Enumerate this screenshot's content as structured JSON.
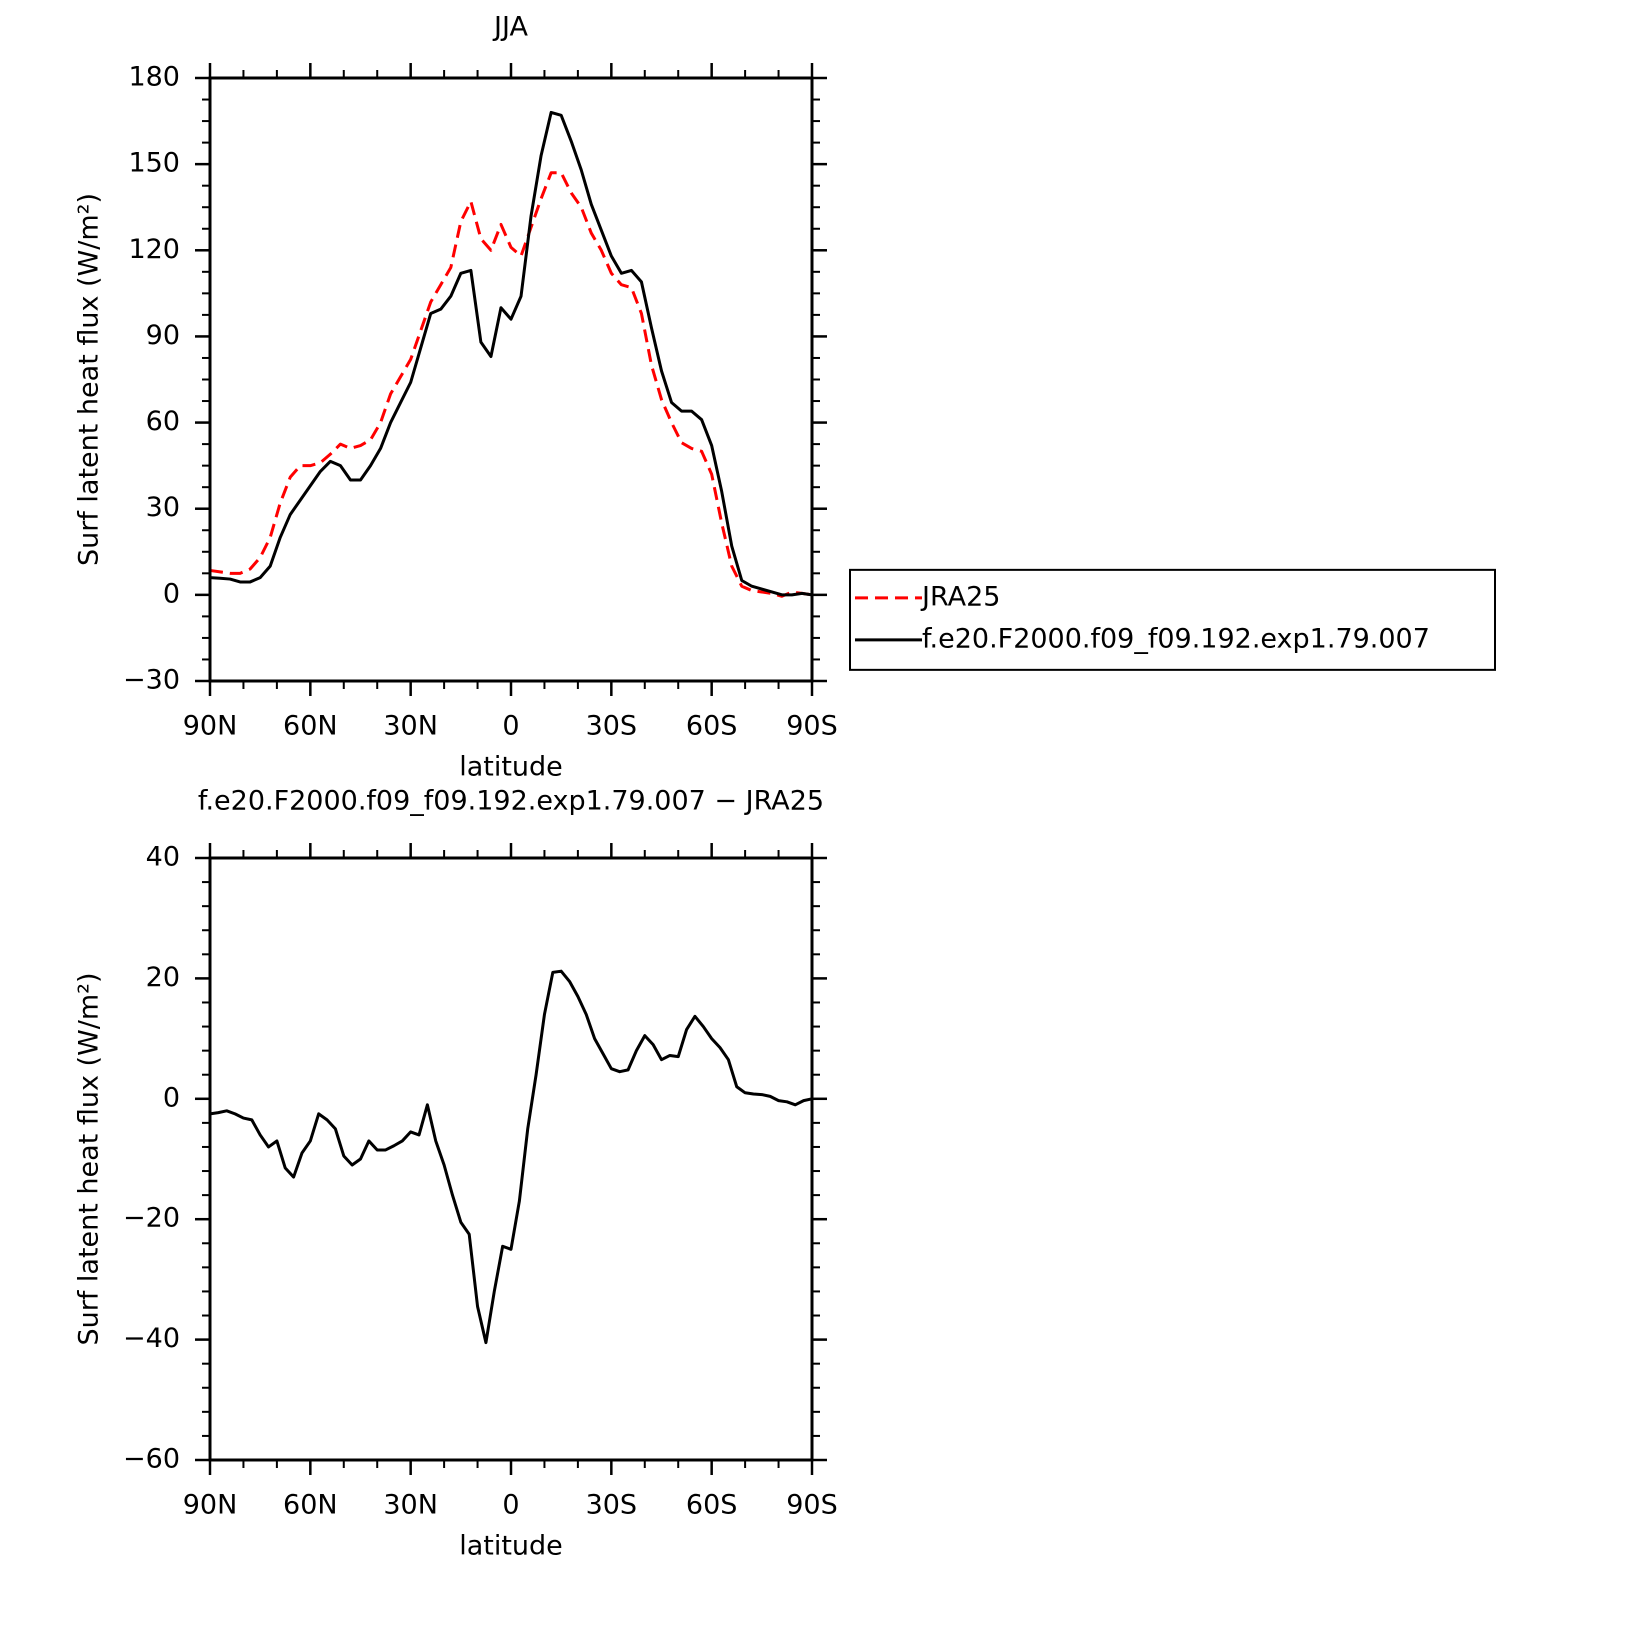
{
  "chart_data": [
    {
      "type": "line",
      "title": "JJA",
      "xlabel": "latitude",
      "ylabel": "Surf latent heat flux (W/m²)",
      "x": [
        90,
        87,
        84,
        81,
        78,
        75,
        72,
        69,
        66,
        63,
        60,
        57,
        54,
        51,
        48,
        45,
        42,
        39,
        36,
        33,
        30,
        27,
        24,
        21,
        18,
        15,
        12,
        9,
        6,
        3,
        0,
        -3,
        -6,
        -9,
        -12,
        -15,
        -18,
        -21,
        -24,
        -27,
        -30,
        -33,
        -36,
        -39,
        -42,
        -45,
        -48,
        -51,
        -54,
        -57,
        -60,
        -63,
        -66,
        -69,
        -72,
        -75,
        -78,
        -81,
        -84,
        -87,
        -90
      ],
      "xlim": [
        90,
        -90
      ],
      "xticks": [
        {
          "value": 90,
          "label": "90N"
        },
        {
          "value": 60,
          "label": "60N"
        },
        {
          "value": 30,
          "label": "30N"
        },
        0,
        {
          "value": -30,
          "label": "30S"
        },
        {
          "value": -60,
          "label": "60S"
        },
        {
          "value": -90,
          "label": "90S"
        }
      ],
      "ylim": [
        -30,
        180
      ],
      "yticks": [
        -30,
        0,
        30,
        60,
        90,
        120,
        150,
        180
      ],
      "legend": "right",
      "series": [
        {
          "name": "JRA25",
          "color": "#ff0000",
          "dash": true,
          "values": [
            8.5,
            8,
            7.5,
            7.5,
            9,
            13,
            20,
            32,
            41,
            45,
            45,
            46,
            49,
            52.5,
            51,
            52,
            54,
            60,
            70,
            76,
            82,
            92,
            102,
            108,
            114,
            130,
            137,
            124,
            120,
            129,
            121,
            118,
            128,
            138,
            147,
            147,
            140,
            135,
            126,
            120,
            112,
            108,
            107,
            98,
            80,
            68,
            60,
            53,
            51,
            50,
            42,
            25,
            10,
            3,
            1.5,
            1,
            0.5,
            -0.5,
            1,
            0.5,
            0
          ]
        },
        {
          "name": "f.e20.F2000.f09_f09.192.exp1.79.007",
          "color": "#000000",
          "values": [
            6,
            5.8,
            5.5,
            4.5,
            4.5,
            6,
            10,
            20,
            28,
            33,
            38,
            43,
            46.5,
            45,
            40,
            40,
            45,
            51,
            60,
            67,
            74,
            86,
            98,
            99.5,
            104,
            112,
            113,
            88,
            83,
            100,
            96,
            104,
            132,
            153,
            168,
            167,
            158,
            148,
            136,
            127,
            118,
            112,
            113,
            109,
            93,
            78,
            67,
            64,
            64,
            61,
            52,
            36,
            17,
            5,
            3,
            2,
            1,
            0,
            0,
            0.5,
            0
          ]
        }
      ]
    },
    {
      "type": "line",
      "title": "f.e20.F2000.f09_f09.192.exp1.79.007 − JRA25",
      "xlabel": "latitude",
      "ylabel": "Surf latent heat flux (W/m²)",
      "x": [
        90,
        87.5,
        85,
        82.5,
        80,
        77.5,
        75,
        72.5,
        70,
        67.5,
        65,
        62.5,
        60,
        57.5,
        55,
        52.5,
        50,
        47.5,
        45,
        42.5,
        40,
        37.5,
        35,
        32.5,
        30,
        27.5,
        25,
        22.5,
        20,
        17.5,
        15,
        12.5,
        10,
        7.5,
        5,
        2.5,
        0,
        -2.5,
        -5,
        -7.5,
        -10,
        -12.5,
        -15,
        -17.5,
        -20,
        -22.5,
        -25,
        -27.5,
        -30,
        -32.5,
        -35,
        -37.5,
        -40,
        -42.5,
        -45,
        -47.5,
        -50,
        -52.5,
        -55,
        -57.5,
        -60,
        -62.5,
        -65,
        -67.5,
        -70,
        -72.5,
        -75,
        -77.5,
        -80,
        -82.5,
        -85,
        -87.5,
        -90
      ],
      "xlim": [
        90,
        -90
      ],
      "xticks": [
        {
          "value": 90,
          "label": "90N"
        },
        {
          "value": 60,
          "label": "60N"
        },
        {
          "value": 30,
          "label": "30N"
        },
        0,
        {
          "value": -30,
          "label": "30S"
        },
        {
          "value": -60,
          "label": "60S"
        },
        {
          "value": -90,
          "label": "90S"
        }
      ],
      "ylim": [
        -60,
        40
      ],
      "yticks": [
        -60,
        -40,
        -20,
        0,
        20,
        40
      ],
      "series": [
        {
          "color": "#000000",
          "values": [
            -2.5,
            -2.3,
            -2,
            -2.5,
            -3.2,
            -3.5,
            -6,
            -8,
            -7,
            -11.5,
            -13,
            -9,
            -7,
            -2.5,
            -3.5,
            -5,
            -9.5,
            -11,
            -10,
            -7,
            -8.5,
            -8.5,
            -7.8,
            -7,
            -5.5,
            -6,
            -1,
            -7,
            -11,
            -16,
            -20.5,
            -22.5,
            -34.5,
            -40.5,
            -32,
            -24.5,
            -25,
            -17,
            -5,
            4,
            14,
            21,
            21.2,
            19.5,
            17,
            14,
            10,
            7.5,
            5,
            4.5,
            4.8,
            8,
            10.5,
            9,
            6.5,
            7.2,
            7,
            11.5,
            13.7,
            12,
            10,
            8.5,
            6.5,
            2,
            1,
            0.8,
            0.7,
            0.4,
            -0.3,
            -0.5,
            -1,
            -0.3,
            0
          ]
        }
      ]
    }
  ]
}
